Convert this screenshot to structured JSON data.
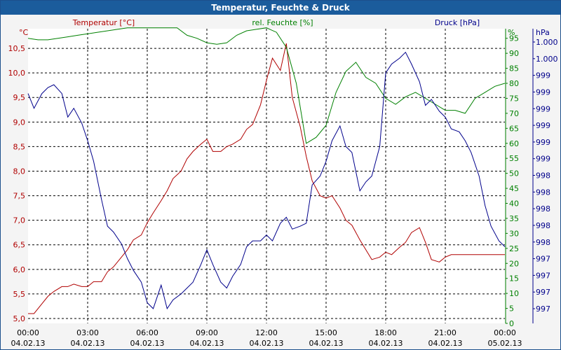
{
  "window": {
    "title": "Temperatur, Feuchte & Druck"
  },
  "chart_data": {
    "type": "line",
    "title": "Temperatur, Feuchte & Druck",
    "grid": true,
    "x_ticks": [
      {
        "time": "00:00",
        "date": "04.02.13"
      },
      {
        "time": "03:00",
        "date": "04.02.13"
      },
      {
        "time": "06:00",
        "date": "04.02.13"
      },
      {
        "time": "09:00",
        "date": "04.02.13"
      },
      {
        "time": "12:00",
        "date": "04.02.13"
      },
      {
        "time": "15:00",
        "date": "04.02.13"
      },
      {
        "time": "18:00",
        "date": "04.02.13"
      },
      {
        "time": "21:00",
        "date": "04.02.13"
      },
      {
        "time": "00:00",
        "date": "05.02.13"
      }
    ],
    "axes": {
      "temperature": {
        "label": "Temperatur [°C]",
        "unit": "°C",
        "color": "#b00000",
        "ylim": [
          4.9,
          10.9
        ],
        "ticks": [
          "5,0",
          "5,5",
          "6,0",
          "6,5",
          "7,0",
          "7,5",
          "8,0",
          "8,5",
          "9,0",
          "9,5",
          "10,0",
          "10,5"
        ]
      },
      "humidity": {
        "label": "rel. Feuchte [%]",
        "unit": "%",
        "color": "#008000",
        "ylim": [
          0,
          98.2
        ],
        "ticks": [
          "0",
          "5",
          "10",
          "15",
          "20",
          "25",
          "30",
          "35",
          "40",
          "45",
          "50",
          "55",
          "60",
          "65",
          "70",
          "75",
          "80",
          "85",
          "90",
          "95"
        ]
      },
      "pressure": {
        "label": "Druck [hPa]",
        "unit": "hPa",
        "color": "#00008b",
        "ticks": [
          "997",
          "997",
          "997",
          "997",
          "998",
          "998",
          "998",
          "998",
          "998",
          "999",
          "999",
          "999",
          "999",
          "999",
          "999",
          "1.000",
          "1.000"
        ]
      }
    },
    "series": [
      {
        "name": "Temperatur [°C]",
        "axis": "temperature",
        "x": [
          0,
          0.3,
          0.7,
          1.0,
          1.3,
          1.7,
          2.0,
          2.3,
          2.7,
          3.0,
          3.3,
          3.7,
          4.0,
          4.3,
          4.7,
          5.0,
          5.3,
          5.7,
          6.0,
          6.3,
          6.7,
          7.0,
          7.3,
          7.7,
          8.0,
          8.3,
          8.7,
          9.0,
          9.3,
          9.7,
          10.0,
          10.3,
          10.7,
          11.0,
          11.3,
          11.7,
          12.0,
          12.3,
          12.7,
          13.0,
          13.3,
          13.7,
          14.0,
          14.3,
          14.7,
          15.0,
          15.3,
          15.7,
          16.0,
          16.3,
          16.7,
          17.0,
          17.3,
          17.7,
          18.0,
          18.3,
          18.7,
          19.0,
          19.3,
          19.7,
          20.0,
          20.3,
          20.7,
          21.0,
          21.3,
          21.7,
          22.0,
          22.3,
          22.7,
          23.0,
          23.3,
          23.7,
          24.0
        ],
        "values": [
          5.1,
          5.1,
          5.3,
          5.45,
          5.55,
          5.65,
          5.65,
          5.7,
          5.65,
          5.65,
          5.75,
          5.75,
          5.95,
          6.05,
          6.25,
          6.4,
          6.6,
          6.7,
          6.95,
          7.15,
          7.4,
          7.6,
          7.85,
          8.0,
          8.25,
          8.4,
          8.55,
          8.65,
          8.4,
          8.4,
          8.5,
          8.55,
          8.65,
          8.85,
          8.95,
          9.35,
          9.85,
          10.3,
          10.05,
          10.6,
          9.5,
          8.9,
          8.3,
          7.8,
          7.5,
          7.45,
          7.5,
          7.25,
          7.0,
          6.9,
          6.6,
          6.4,
          6.2,
          6.25,
          6.35,
          6.3,
          6.45,
          6.55,
          6.75,
          6.85,
          6.55,
          6.2,
          6.15,
          6.25,
          6.3,
          6.3,
          6.3,
          6.3,
          6.3,
          6.3,
          6.3,
          6.3,
          6.3
        ]
      },
      {
        "name": "rel. Feuchte [%]",
        "axis": "humidity",
        "x": [
          0,
          0.5,
          1.0,
          1.5,
          2.0,
          2.5,
          3.0,
          3.5,
          4.0,
          4.5,
          5.0,
          5.5,
          6.0,
          6.5,
          7.0,
          7.5,
          8.0,
          8.5,
          9.0,
          9.5,
          10.0,
          10.5,
          11.0,
          11.5,
          12.0,
          12.5,
          13.0,
          13.5,
          14.0,
          14.5,
          15.0,
          15.5,
          16.0,
          16.5,
          17.0,
          17.5,
          18.0,
          18.5,
          19.0,
          19.5,
          20.0,
          20.5,
          21.0,
          21.5,
          22.0,
          22.5,
          23.0,
          23.5,
          24.0
        ],
        "values": [
          95,
          94.5,
          94.5,
          95,
          95.5,
          96,
          96.5,
          97,
          97.5,
          98,
          98.5,
          98.5,
          98.5,
          98.5,
          98.5,
          98.5,
          96,
          95,
          93.5,
          93,
          93.5,
          96,
          97.5,
          98,
          98.5,
          97,
          92,
          80,
          60,
          62,
          66,
          77,
          84,
          87,
          82,
          80,
          75,
          73,
          75.5,
          77,
          75,
          73,
          71,
          71,
          70,
          75,
          77,
          79,
          80
        ]
      },
      {
        "name": "Druck [hPa]",
        "axis": "pressure",
        "note_level_pct": "level in % of plot height from top",
        "x": [
          0,
          0.3,
          0.7,
          1.0,
          1.3,
          1.7,
          2.0,
          2.3,
          2.7,
          3.0,
          3.3,
          3.7,
          4.0,
          4.3,
          4.7,
          5.0,
          5.3,
          5.7,
          6.0,
          6.3,
          6.7,
          7.0,
          7.3,
          7.7,
          8.0,
          8.3,
          8.7,
          9.0,
          9.3,
          9.7,
          10.0,
          10.3,
          10.7,
          11.0,
          11.3,
          11.7,
          12.0,
          12.3,
          12.7,
          13.0,
          13.3,
          13.7,
          14.0,
          14.3,
          14.7,
          15.0,
          15.3,
          15.7,
          16.0,
          16.3,
          16.7,
          17.0,
          17.3,
          17.7,
          18.0,
          18.3,
          18.7,
          19.0,
          19.3,
          19.7,
          20.0,
          20.3,
          20.7,
          21.0,
          21.3,
          21.7,
          22.0,
          22.3,
          22.7,
          23.0,
          23.3,
          23.7,
          24.0
        ],
        "values": [
          22,
          27,
          22,
          20,
          19,
          22,
          30,
          27,
          32,
          38,
          45,
          58,
          67,
          69,
          73,
          78,
          82,
          86,
          93,
          95,
          87,
          95,
          92,
          90,
          88,
          86,
          80,
          75,
          80,
          86,
          88,
          84,
          80,
          74,
          72,
          72,
          70,
          72,
          66,
          64,
          68,
          67,
          66,
          53,
          50,
          45,
          38,
          33,
          40,
          42,
          55,
          52,
          50,
          40,
          15,
          12,
          10,
          8,
          12,
          18,
          26,
          24,
          28,
          30,
          34,
          35,
          38,
          42,
          50,
          60,
          67,
          72,
          74
        ]
      }
    ]
  }
}
